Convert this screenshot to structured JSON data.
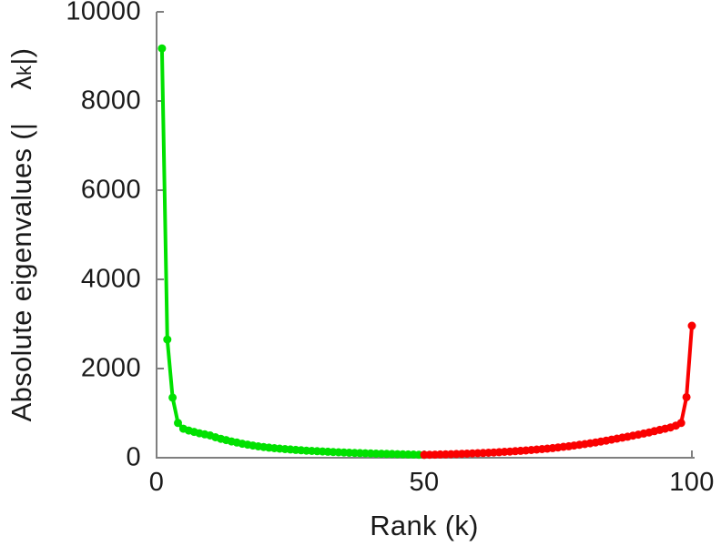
{
  "figure": {
    "background": "#ffffff",
    "axis_color": "#7f7f7f",
    "text_color": "#1a1a1a"
  },
  "chart_data": {
    "type": "line",
    "title": "",
    "xlabel": "Rank (k)",
    "ylabel": {
      "prefix": "Absolute eigenvalues (|",
      "lambda": "λ",
      "subscript": "k",
      "suffix": "|)"
    },
    "xlim": [
      0,
      100
    ],
    "ylim": [
      0,
      10000
    ],
    "xticks": [
      0,
      50,
      100
    ],
    "xtick_labels": [
      "0",
      "50",
      "100"
    ],
    "yticks": [
      0,
      2000,
      4000,
      6000,
      8000,
      10000
    ],
    "ytick_labels": [
      "0",
      "2000",
      "4000",
      "6000",
      "8000",
      "10000"
    ],
    "grid": false,
    "legend": null,
    "marker": "dot",
    "series": [
      {
        "name": "leading-eigenvalues-green",
        "color": "#00e100",
        "x": [
          1,
          2,
          3,
          4,
          5,
          6,
          7,
          8,
          9,
          10,
          11,
          12,
          13,
          14,
          15,
          16,
          17,
          18,
          19,
          20,
          21,
          22,
          23,
          24,
          25,
          26,
          27,
          28,
          29,
          30,
          31,
          32,
          33,
          34,
          35,
          36,
          37,
          38,
          39,
          40,
          41,
          42,
          43,
          44,
          45,
          46,
          47,
          48,
          49,
          50
        ],
        "y": [
          9180,
          2650,
          1350,
          780,
          650,
          610,
          580,
          550,
          525,
          500,
          460,
          425,
          395,
          365,
          340,
          315,
          293,
          273,
          255,
          240,
          227,
          215,
          204,
          194,
          185,
          176,
          168,
          160,
          153,
          146,
          140,
          134,
          128,
          123,
          118,
          113,
          108,
          104,
          100,
          96,
          92,
          89,
          86,
          83,
          80,
          77,
          74,
          71,
          68,
          65
        ]
      },
      {
        "name": "trailing-eigenvalues-red",
        "color": "#fa0000",
        "x": [
          50,
          51,
          52,
          53,
          54,
          55,
          56,
          57,
          58,
          59,
          60,
          61,
          62,
          63,
          64,
          65,
          66,
          67,
          68,
          69,
          70,
          71,
          72,
          73,
          74,
          75,
          76,
          77,
          78,
          79,
          80,
          81,
          82,
          83,
          84,
          85,
          86,
          87,
          88,
          89,
          90,
          91,
          92,
          93,
          94,
          95,
          96,
          97,
          98,
          99,
          100
        ],
        "y": [
          65,
          67,
          70,
          73,
          76,
          80,
          84,
          88,
          92,
          97,
          102,
          107,
          113,
          119,
          125,
          132,
          139,
          147,
          155,
          164,
          173,
          183,
          194,
          205,
          217,
          230,
          244,
          258,
          273,
          289,
          306,
          324,
          343,
          363,
          384,
          406,
          428,
          450,
          472,
          495,
          518,
          542,
          568,
          596,
          624,
          652,
          680,
          720,
          780,
          1360,
          2960
        ]
      }
    ]
  }
}
